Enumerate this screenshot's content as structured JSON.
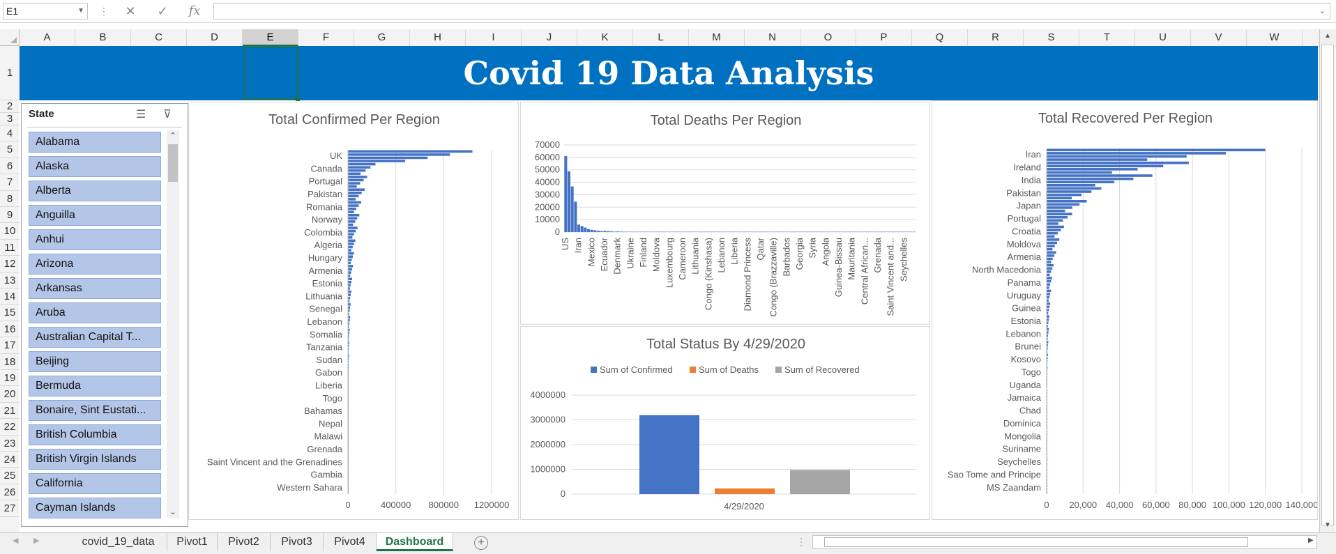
{
  "formula_bar": {
    "name_box": "E1",
    "cancel_icon": "✕",
    "enter_icon": "✓",
    "fx_label": "fx",
    "formula": ""
  },
  "columns": [
    "A",
    "B",
    "C",
    "D",
    "E",
    "F",
    "G",
    "H",
    "I",
    "J",
    "K",
    "L",
    "M",
    "N",
    "O",
    "P",
    "Q",
    "R",
    "S",
    "T",
    "U",
    "V",
    "W"
  ],
  "selected_column": "E",
  "rows": [
    "1",
    "2",
    "3",
    "4",
    "5",
    "6",
    "7",
    "8",
    "9",
    "10",
    "11",
    "12",
    "13",
    "14",
    "15",
    "16",
    "17",
    "18",
    "19",
    "20",
    "21",
    "22",
    "23",
    "24",
    "25",
    "26",
    "27"
  ],
  "banner": {
    "title": "Covid 19 Data Analysis",
    "background": "#0070c0"
  },
  "slicer": {
    "title": "State",
    "multiselect_icon": "multi-select-icon",
    "clear_filter_icon": "clear-filter-icon",
    "items": [
      "Alabama",
      "Alaska",
      "Alberta",
      "Anguilla",
      "Anhui",
      "Arizona",
      "Arkansas",
      "Aruba",
      "Australian Capital T...",
      "Beijing",
      "Bermuda",
      "Bonaire, Sint Eustati...",
      "British Columbia",
      "British Virgin Islands",
      "California",
      "Cayman Islands"
    ]
  },
  "charts": {
    "confirmed": {
      "title": "Total Confirmed Per  Region"
    },
    "deaths": {
      "title": "Total Deaths Per Region"
    },
    "status": {
      "title": "Total Status By 4/29/2020"
    },
    "recovered": {
      "title": "Total Recovered Per Region"
    }
  },
  "chart_data": [
    {
      "id": "confirmed",
      "type": "bar",
      "orientation": "horizontal",
      "title": "Total Confirmed Per  Region",
      "categories": [
        "UK",
        "Canada",
        "Portugal",
        "Pakistan",
        "Romania",
        "Norway",
        "Colombia",
        "Algeria",
        "Hungary",
        "Armenia",
        "Estonia",
        "Lithuania",
        "Senegal",
        "Lebanon",
        "Somalia",
        "Tanzania",
        "Sudan",
        "Gabon",
        "Liberia",
        "Togo",
        "Bahamas",
        "Nepal",
        "Malawi",
        "Grenada",
        "Saint Vincent and the Grenadines",
        "Gambia",
        "Western Sahara"
      ],
      "values": [
        1040000,
        230000,
        160000,
        140000,
        110000,
        95000,
        80000,
        62000,
        50000,
        42000,
        35000,
        28000,
        22000,
        18000,
        14000,
        11000,
        9000,
        7000,
        5500,
        4200,
        3200,
        2500,
        1800,
        1200,
        800,
        500,
        300
      ],
      "xlim": [
        0,
        1200000
      ],
      "xticks": [
        "0",
        "400000",
        "800000",
        "1200000"
      ],
      "color": "#4472c4",
      "grid": true
    },
    {
      "id": "deaths",
      "type": "bar",
      "title": "Total Deaths Per Region",
      "categories": [
        "US",
        "Iran",
        "Mexico",
        "Ecuador",
        "Denmark",
        "Ukraine",
        "Finland",
        "Moldova",
        "Luxembourg",
        "Cameroon",
        "Lithuania",
        "Congo (Kinshasa)",
        "Lebanon",
        "Liberia",
        "Diamond Princess",
        "Qatar",
        "Congo (Brazzaville)",
        "Barbados",
        "Georgia",
        "Syria",
        "Angola",
        "Guinea-Bissau",
        "Mauritania",
        "Central African...",
        "Grenada",
        "Saint Vincent and...",
        "Seychelles"
      ],
      "values": [
        61000,
        6000,
        1800,
        900,
        450,
        280,
        200,
        160,
        120,
        90,
        60,
        45,
        30,
        22,
        15,
        12,
        10,
        8,
        6,
        4,
        3,
        2,
        1,
        1,
        0,
        0,
        0
      ],
      "ylim": [
        0,
        70000
      ],
      "yticks": [
        "70000",
        "60000",
        "50000",
        "40000",
        "30000",
        "20000",
        "10000",
        "0"
      ],
      "color": "#4472c4",
      "grid": true
    },
    {
      "id": "status",
      "type": "bar",
      "title": "Total Status By 4/29/2020",
      "categories": [
        "4/29/2020"
      ],
      "series": [
        {
          "name": "Sum of Confirmed",
          "values": [
            3190000
          ],
          "color": "#4472c4"
        },
        {
          "name": "Sum of Deaths",
          "values": [
            228000
          ],
          "color": "#ed7d31"
        },
        {
          "name": "Sum of Recovered",
          "values": [
            975000
          ],
          "color": "#a5a5a5"
        }
      ],
      "ylim": [
        0,
        4000000
      ],
      "yticks": [
        "4000000",
        "3000000",
        "2000000",
        "1000000",
        "0"
      ],
      "legend": "top",
      "grid": true
    },
    {
      "id": "recovered",
      "type": "bar",
      "orientation": "horizontal",
      "title": "Total Recovered Per Region",
      "categories": [
        "Iran",
        "Ireland",
        "India",
        "Pakistan",
        "Japan",
        "Portugal",
        "Croatia",
        "Moldova",
        "Armenia",
        "North Macedonia",
        "Panama",
        "Uruguay",
        "Guinea",
        "Estonia",
        "Lebanon",
        "Brunei",
        "Kosovo",
        "Togo",
        "Uganda",
        "Jamaica",
        "Chad",
        "Dominica",
        "Mongolia",
        "Suriname",
        "Seychelles",
        "Sao Tome and Principe",
        "MS Zaandam"
      ],
      "values": [
        120000,
        78000,
        58000,
        30000,
        22000,
        14000,
        9500,
        7000,
        5200,
        3800,
        3000,
        2400,
        1900,
        1500,
        1200,
        900,
        700,
        500,
        350,
        250,
        180,
        120,
        80,
        50,
        30,
        10,
        0
      ],
      "xlim": [
        0,
        140000
      ],
      "xticks": [
        "0",
        "20,000",
        "40,000",
        "60,000",
        "80,000",
        "100,000",
        "120,000",
        "140,000"
      ],
      "color": "#4472c4",
      "grid": true
    }
  ],
  "sheet_tabs": [
    "covid_19_data",
    "Pivot1",
    "Pivot2",
    "Pivot3",
    "Pivot4",
    "Dashboard"
  ],
  "active_tab": "Dashboard"
}
